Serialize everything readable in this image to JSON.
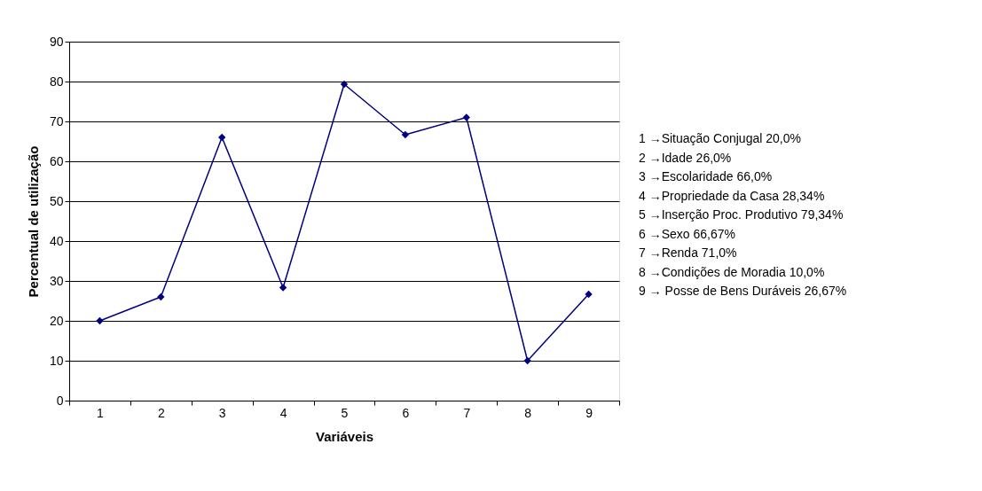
{
  "chart_data": {
    "type": "line",
    "xlabel": "Variáveis",
    "ylabel": "Percentual de utilização",
    "categories": [
      "1",
      "2",
      "3",
      "4",
      "5",
      "6",
      "7",
      "8",
      "9"
    ],
    "series": [
      {
        "color": "#000080",
        "values": [
          20.0,
          26.0,
          66.0,
          28.34,
          79.34,
          66.67,
          71.0,
          10.0,
          26.67
        ]
      }
    ],
    "ylim": [
      0,
      90
    ],
    "yticks": [
      0,
      10,
      20,
      30,
      40,
      50,
      60,
      70,
      80,
      90
    ],
    "grid": "y",
    "marker": "diamond",
    "line_style": "solid",
    "annotations": [
      "1 →Situação Conjugal 20,0%",
      "2 →Idade 26,0%",
      "3 →Escolaridade 66,0%",
      "4 →Propriedade da Casa 28,34%",
      "5 →Inserção Proc. Produtivo 79,34%",
      "6 →Sexo 66,67%",
      "7 →Renda 71,0%",
      "8 →Condições de Moradia 10,0%",
      "9 → Posse de Bens Duráveis 26,67%"
    ]
  }
}
